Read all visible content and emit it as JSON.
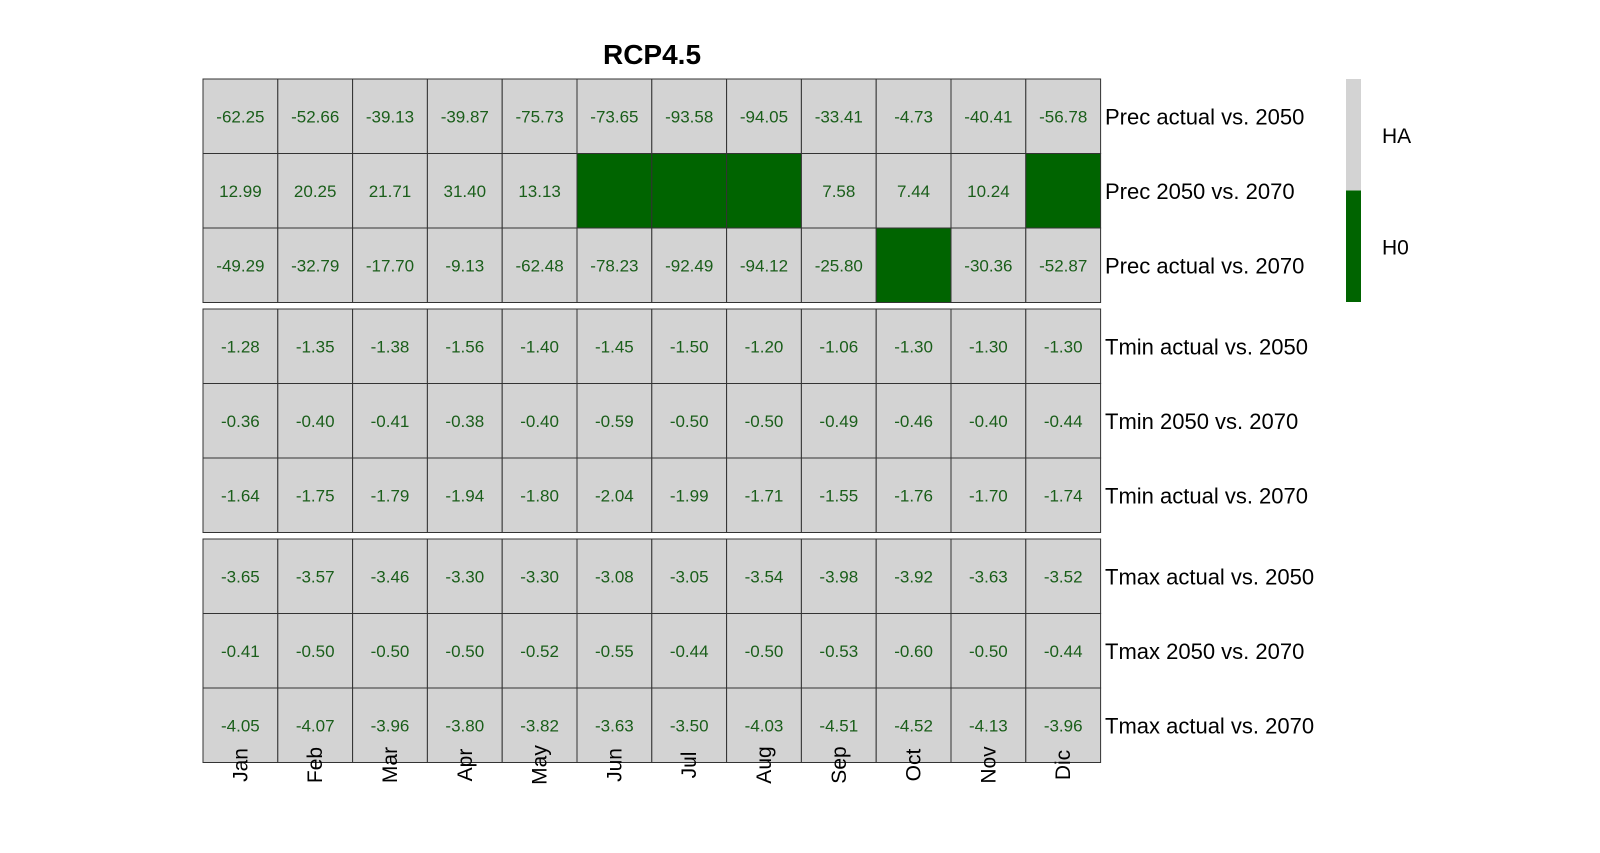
{
  "chart_data": {
    "type": "heatmap",
    "title": "RCP4.5",
    "columns": [
      "Jan",
      "Feb",
      "Mar",
      "Apr",
      "May",
      "Jun",
      "Jul",
      "Aug",
      "Sep",
      "Oct",
      "Nov",
      "Dic"
    ],
    "groups": [
      {
        "name": "Prec",
        "rows": [
          {
            "label": "Prec actual vs. 2050",
            "values": [
              "-62.25",
              "-52.66",
              "-39.13",
              "-39.87",
              "-75.73",
              "-73.65",
              "-93.58",
              "-94.05",
              "-33.41",
              "-4.73",
              "-40.41",
              "-56.78"
            ],
            "hypothesis": [
              "HA",
              "HA",
              "HA",
              "HA",
              "HA",
              "HA",
              "HA",
              "HA",
              "HA",
              "HA",
              "HA",
              "HA"
            ]
          },
          {
            "label": "Prec 2050 vs. 2070",
            "values": [
              "12.99",
              "20.25",
              "21.71",
              "31.40",
              "13.13",
              "",
              "",
              "",
              "7.58",
              "7.44",
              "10.24",
              ""
            ],
            "hypothesis": [
              "HA",
              "HA",
              "HA",
              "HA",
              "HA",
              "H0",
              "H0",
              "H0",
              "HA",
              "HA",
              "HA",
              "H0"
            ]
          },
          {
            "label": "Prec actual vs. 2070",
            "values": [
              "-49.29",
              "-32.79",
              "-17.70",
              "-9.13",
              "-62.48",
              "-78.23",
              "-92.49",
              "-94.12",
              "-25.80",
              "",
              "-30.36",
              "-52.87"
            ],
            "hypothesis": [
              "HA",
              "HA",
              "HA",
              "HA",
              "HA",
              "HA",
              "HA",
              "HA",
              "HA",
              "H0",
              "HA",
              "HA"
            ]
          }
        ]
      },
      {
        "name": "Tmin",
        "rows": [
          {
            "label": "Tmin actual vs. 2050",
            "values": [
              "-1.28",
              "-1.35",
              "-1.38",
              "-1.56",
              "-1.40",
              "-1.45",
              "-1.50",
              "-1.20",
              "-1.06",
              "-1.30",
              "-1.30",
              "-1.30"
            ],
            "hypothesis": [
              "HA",
              "HA",
              "HA",
              "HA",
              "HA",
              "HA",
              "HA",
              "HA",
              "HA",
              "HA",
              "HA",
              "HA"
            ]
          },
          {
            "label": "Tmin 2050 vs. 2070",
            "values": [
              "-0.36",
              "-0.40",
              "-0.41",
              "-0.38",
              "-0.40",
              "-0.59",
              "-0.50",
              "-0.50",
              "-0.49",
              "-0.46",
              "-0.40",
              "-0.44"
            ],
            "hypothesis": [
              "HA",
              "HA",
              "HA",
              "HA",
              "HA",
              "HA",
              "HA",
              "HA",
              "HA",
              "HA",
              "HA",
              "HA"
            ]
          },
          {
            "label": "Tmin actual vs. 2070",
            "values": [
              "-1.64",
              "-1.75",
              "-1.79",
              "-1.94",
              "-1.80",
              "-2.04",
              "-1.99",
              "-1.71",
              "-1.55",
              "-1.76",
              "-1.70",
              "-1.74"
            ],
            "hypothesis": [
              "HA",
              "HA",
              "HA",
              "HA",
              "HA",
              "HA",
              "HA",
              "HA",
              "HA",
              "HA",
              "HA",
              "HA"
            ]
          }
        ]
      },
      {
        "name": "Tmax",
        "rows": [
          {
            "label": "Tmax actual vs. 2050",
            "values": [
              "-3.65",
              "-3.57",
              "-3.46",
              "-3.30",
              "-3.30",
              "-3.08",
              "-3.05",
              "-3.54",
              "-3.98",
              "-3.92",
              "-3.63",
              "-3.52"
            ],
            "hypothesis": [
              "HA",
              "HA",
              "HA",
              "HA",
              "HA",
              "HA",
              "HA",
              "HA",
              "HA",
              "HA",
              "HA",
              "HA"
            ]
          },
          {
            "label": "Tmax 2050 vs. 2070",
            "values": [
              "-0.41",
              "-0.50",
              "-0.50",
              "-0.50",
              "-0.52",
              "-0.55",
              "-0.44",
              "-0.50",
              "-0.53",
              "-0.60",
              "-0.50",
              "-0.44"
            ],
            "hypothesis": [
              "HA",
              "HA",
              "HA",
              "HA",
              "HA",
              "HA",
              "HA",
              "HA",
              "HA",
              "HA",
              "HA",
              "HA"
            ]
          },
          {
            "label": "Tmax actual vs. 2070",
            "values": [
              "-4.05",
              "-4.07",
              "-3.96",
              "-3.80",
              "-3.82",
              "-3.63",
              "-3.50",
              "-4.03",
              "-4.51",
              "-4.52",
              "-4.13",
              "-3.96"
            ],
            "hypothesis": [
              "HA",
              "HA",
              "HA",
              "HA",
              "HA",
              "HA",
              "HA",
              "HA",
              "HA",
              "HA",
              "HA",
              "HA"
            ]
          }
        ]
      }
    ],
    "legend": {
      "placement": "right",
      "items": [
        {
          "key": "HA",
          "label": "HA",
          "color": "#d3d3d3"
        },
        {
          "key": "H0",
          "label": "H0",
          "color": "#006400"
        }
      ]
    },
    "colors": {
      "text": "#1a5e1a",
      "border": "#333333"
    }
  }
}
